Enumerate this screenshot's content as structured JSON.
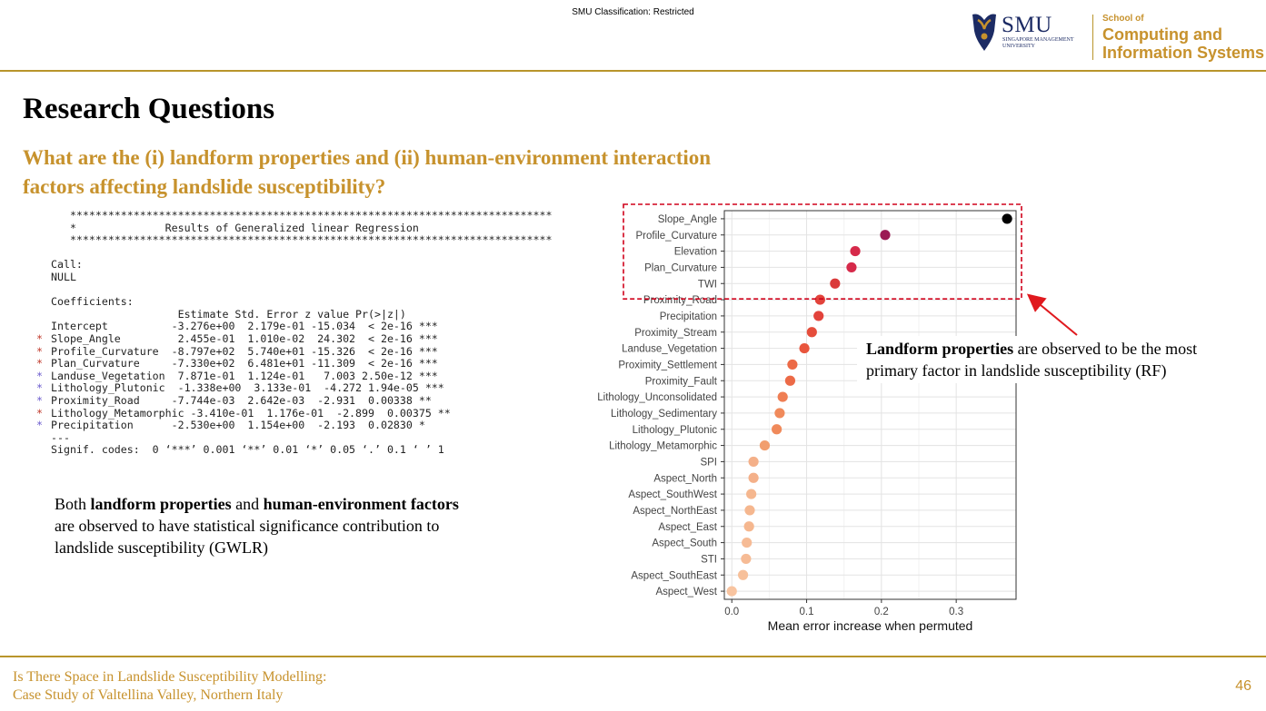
{
  "header": {
    "classification": "SMU Classification: Restricted",
    "logo_word": "SMU",
    "logo_sub_1": "SINGAPORE MANAGEMENT",
    "logo_sub_2": "UNIVERSITY",
    "school_of": "School of",
    "school_line_1": "Computing and",
    "school_line_2": "Information Systems",
    "accent_color": "#c7922d",
    "navy_color": "#1c2b64"
  },
  "slide": {
    "title": "Research Questions",
    "question": "What are the (i) landform properties and (ii) human-environment interaction factors affecting landslide susceptibility?"
  },
  "r_output": {
    "lines": [
      {
        "star": "",
        "text": "   ****************************************************************************"
      },
      {
        "star": "",
        "text": "   *              Results of Generalized linear Regression"
      },
      {
        "star": "",
        "text": "   ****************************************************************************"
      },
      {
        "star": "",
        "text": ""
      },
      {
        "star": "",
        "text": "Call:"
      },
      {
        "star": "",
        "text": "NULL"
      },
      {
        "star": "",
        "text": ""
      },
      {
        "star": "",
        "text": "Coefficients:"
      },
      {
        "star": "",
        "text": "                    Estimate Std. Error z value Pr(>|z|)"
      },
      {
        "star": "",
        "text": "Intercept          -3.276e+00  2.179e-01 -15.034  < 2e-16 ***"
      },
      {
        "star": "*",
        "text": "Slope_Angle         2.455e-01  1.010e-02  24.302  < 2e-16 ***"
      },
      {
        "star": "*",
        "text": "Profile_Curvature  -8.797e+02  5.740e+01 -15.326  < 2e-16 ***"
      },
      {
        "star": "*",
        "text": "Plan_Curvature     -7.330e+02  6.481e+01 -11.309  < 2e-16 ***"
      },
      {
        "star": "*",
        "text": "Landuse_Vegetation  7.871e-01  1.124e-01   7.003 2.50e-12 ***"
      },
      {
        "star": "*",
        "text": "Lithology_Plutonic  -1.338e+00  3.133e-01  -4.272 1.94e-05 ***"
      },
      {
        "star": "*",
        "text": "Proximity_Road     -7.744e-03  2.642e-03  -2.931  0.00338 **"
      },
      {
        "star": "*",
        "text": "Lithology_Metamorphic -3.410e-01  1.176e-01  -2.899  0.00375 **"
      },
      {
        "star": "*",
        "text": "Precipitation      -2.530e+00  1.154e+00  -2.193  0.02830 *"
      },
      {
        "star": "",
        "text": "---"
      },
      {
        "star": "",
        "text": "Signif. codes:  0 ‘***’ 0.001 ‘**’ 0.01 ‘*’ 0.05 ‘.’ 0.1 ‘ ’ 1"
      }
    ],
    "star_colors": [
      "#c0392b",
      "#c0392b",
      "#c0392b",
      "#6a5acd",
      "#6a5acd",
      "#6a5acd",
      "#c0392b",
      "#6a5acd"
    ]
  },
  "notes": {
    "left_b1": "landform properties",
    "left_and": " and ",
    "left_b2": "human-environment factors",
    "left_pre": "Both ",
    "left_rest": " are observed to have statistical significance contribution to landslide susceptibility (GWLR)",
    "right_b": "Landform properties",
    "right_rest": " are observed to be the most primary factor in landslide susceptibility (RF)"
  },
  "chart_data": {
    "type": "scatter",
    "categories": [
      "Slope_Angle",
      "Profile_Curvature",
      "Elevation",
      "Plan_Curvature",
      "TWI",
      "Proximity_Road",
      "Precipitation",
      "Proximity_Stream",
      "Landuse_Vegetation",
      "Proximity_Settlement",
      "Proximity_Fault",
      "Lithology_Unconsolidated",
      "Lithology_Sedimentary",
      "Lithology_Plutonic",
      "Lithology_Metamorphic",
      "SPI",
      "Aspect_North",
      "Aspect_SouthWest",
      "Aspect_NorthEast",
      "Aspect_East",
      "Aspect_South",
      "STI",
      "Aspect_SouthEast",
      "Aspect_West"
    ],
    "values": [
      0.368,
      0.205,
      0.165,
      0.16,
      0.138,
      0.118,
      0.116,
      0.107,
      0.097,
      0.081,
      0.078,
      0.068,
      0.064,
      0.06,
      0.044,
      0.029,
      0.029,
      0.026,
      0.024,
      0.023,
      0.02,
      0.019,
      0.015,
      0.0
    ],
    "colors": [
      "#000000",
      "#9b1b54",
      "#d62a4a",
      "#d62a4a",
      "#da3a3a",
      "#e2433b",
      "#e2433b",
      "#e54d3b",
      "#e8553d",
      "#ec6a47",
      "#ec6a47",
      "#ef7e53",
      "#f08a5b",
      "#f08a5b",
      "#f19e6e",
      "#f4b089",
      "#f4b089",
      "#f5b78f",
      "#f5b78f",
      "#f5b78f",
      "#f6bb95",
      "#f6bb95",
      "#f7c09a",
      "#f8c4a0"
    ],
    "xlabel": "Mean error increase when permuted",
    "xlim": [
      -0.01,
      0.38
    ],
    "xticks": [
      0.0,
      0.1,
      0.2,
      0.3
    ],
    "xtick_labels": [
      "0.0",
      "0.1",
      "0.2",
      "0.3"
    ],
    "grid": true,
    "highlight_box_color": "#d0021b",
    "highlight_count": 5
  },
  "footer": {
    "line1": "Is There Space in Landslide Susceptibility Modelling:",
    "line2": "Case Study of Valtellina Valley, Northern Italy",
    "page": "46"
  }
}
